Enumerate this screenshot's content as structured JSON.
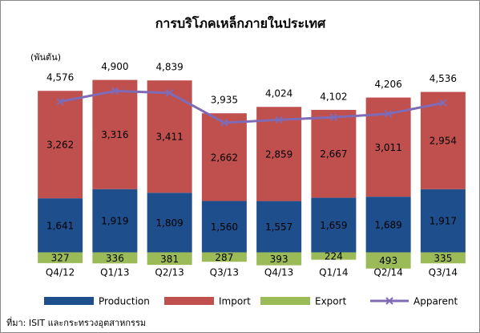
{
  "chart_data": {
    "type": "stacked_bar_line",
    "title": "การบริโภคเหล็กภายในประเทศ",
    "y_label": "(พันตัน)",
    "source": "ที่มา: ISIT และกระทรวงอุตสาหกรรม",
    "categories": [
      "Q4/12",
      "Q1/13",
      "Q2/13",
      "Q3/13",
      "Q4/13",
      "Q1/14",
      "Q2/14",
      "Q3/14"
    ],
    "ylim": [
      -500,
      6200
    ],
    "series": [
      {
        "name": "Production",
        "type": "bar",
        "color": "#1f4e8c",
        "values": [
          1641,
          1919,
          1809,
          1560,
          1557,
          1659,
          1689,
          1917
        ],
        "value_labels": [
          "1,641",
          "1,919",
          "1,809",
          "1,560",
          "1,557",
          "1,659",
          "1,689",
          "1,917"
        ]
      },
      {
        "name": "Import",
        "type": "bar",
        "color": "#c0504d",
        "values": [
          3262,
          3316,
          3411,
          2662,
          2859,
          2667,
          3011,
          2954
        ],
        "value_labels": [
          "3,262",
          "3,316",
          "3,411",
          "2,662",
          "2,859",
          "2,667",
          "3,011",
          "2,954"
        ]
      },
      {
        "name": "Export",
        "type": "bar",
        "color": "#9bbb59",
        "values": [
          -327,
          -336,
          -381,
          -287,
          -393,
          -224,
          -493,
          -335
        ],
        "value_labels": [
          "327",
          "336",
          "381",
          "287",
          "393",
          "224",
          "493",
          "335"
        ]
      },
      {
        "name": "Apparent",
        "type": "line",
        "color": "#7f6bb5",
        "values": [
          4576,
          4900,
          4839,
          3935,
          4024,
          4102,
          4206,
          4536
        ],
        "value_labels": [
          "4,576",
          "4,900",
          "4,839",
          "3,935",
          "4,024",
          "4,102",
          "4,206",
          "4,536"
        ]
      }
    ]
  }
}
